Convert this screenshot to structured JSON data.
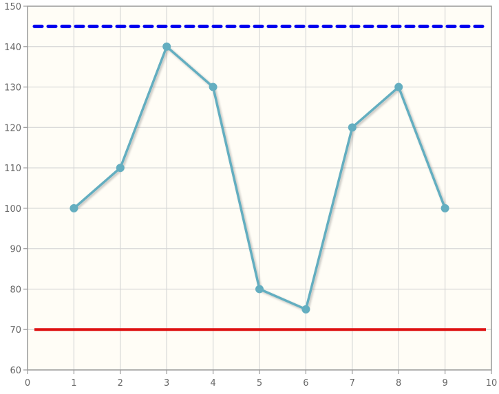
{
  "chart_data": {
    "type": "line",
    "x": [
      1,
      2,
      3,
      4,
      5,
      6,
      7,
      8,
      9
    ],
    "series": [
      {
        "values": [
          100,
          110,
          140,
          130,
          80,
          75,
          120,
          130,
          100
        ]
      }
    ],
    "reference_lines": [
      {
        "y": 145,
        "style": "dashed",
        "color": "#0000ee"
      },
      {
        "y": 70,
        "style": "solid",
        "color": "#dd1111"
      }
    ],
    "xlim": [
      0,
      10
    ],
    "ylim": [
      60,
      150
    ],
    "x_ticks": [
      "0",
      "1",
      "2",
      "3",
      "4",
      "5",
      "6",
      "7",
      "8",
      "9",
      "10"
    ],
    "y_ticks": [
      "60",
      "70",
      "80",
      "90",
      "100",
      "110",
      "120",
      "130",
      "140",
      "150"
    ],
    "grid": true,
    "colors": {
      "series": "#64aec0",
      "grid": "#d6d6d6",
      "axis": "#999999",
      "background": "#fffdf6"
    }
  }
}
